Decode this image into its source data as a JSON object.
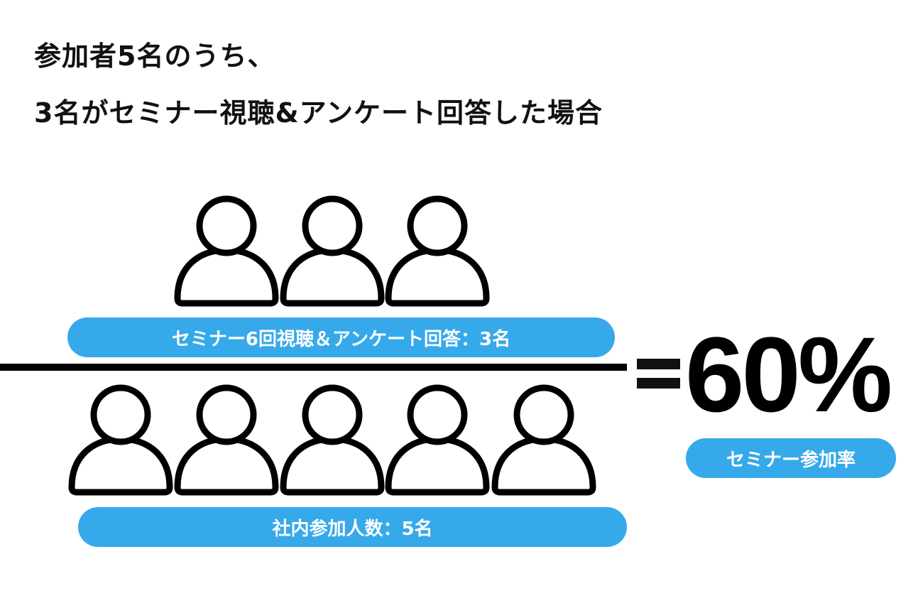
{
  "title": {
    "line1": "参加者5名のうち、",
    "line2": "3名がセミナー視聴&アンケート回答した場合"
  },
  "numerator": {
    "icon": "person-icon",
    "count": 3,
    "label": "セミナー6回視聴＆アンケート回答：3名"
  },
  "denominator": {
    "icon": "person-icon",
    "count": 5,
    "label": "社内参加人数：5名"
  },
  "result": {
    "equals": "=",
    "value": "60%",
    "label": "セミナー参加率"
  },
  "colors": {
    "accent": "#36a9ea",
    "text": "#000000"
  }
}
